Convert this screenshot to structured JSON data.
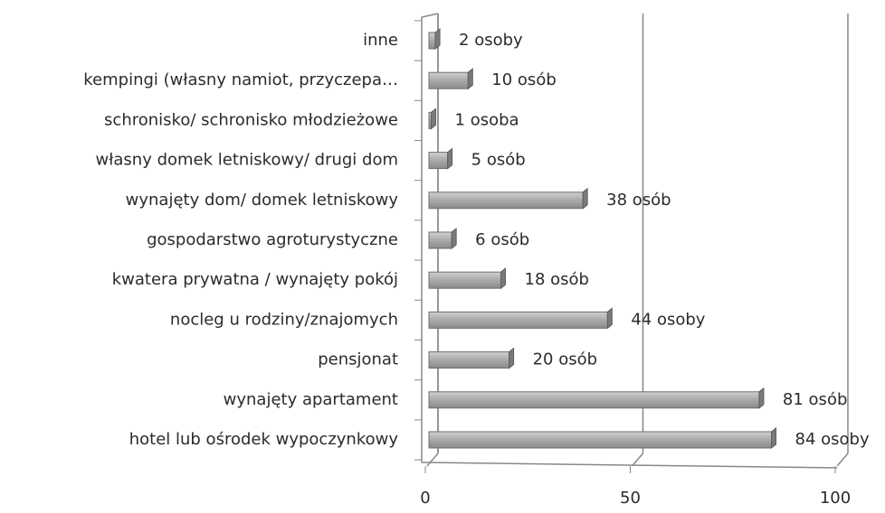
{
  "chart_data": {
    "type": "bar",
    "orientation": "horizontal",
    "categories": [
      "inne",
      "kempingi (własny namiot, przyczepa…",
      "schronisko/ schronisko młodzieżowe",
      "własny domek letniskowy/ drugi dom",
      "wynajęty dom/ domek letniskowy",
      "gospodarstwo agroturystyczne",
      "kwatera prywatna  / wynajęty pokój",
      "nocleg u rodziny/znajomych",
      "pensjonat",
      "wynajęty apartament",
      "hotel lub ośrodek wypoczynkowy"
    ],
    "values": [
      2,
      10,
      1,
      5,
      38,
      6,
      18,
      44,
      20,
      81,
      84
    ],
    "value_labels": [
      "2 osoby",
      "10 osób",
      "1 osoba",
      "5 osób",
      "38 osób",
      "6 osób",
      "18 osób",
      "44 osoby",
      "20 osób",
      "81 osób",
      "84 osoby"
    ],
    "color": "#a9a9a9",
    "xlim": [
      0,
      100
    ],
    "xticks": [
      0,
      50,
      100
    ],
    "grid": true
  }
}
